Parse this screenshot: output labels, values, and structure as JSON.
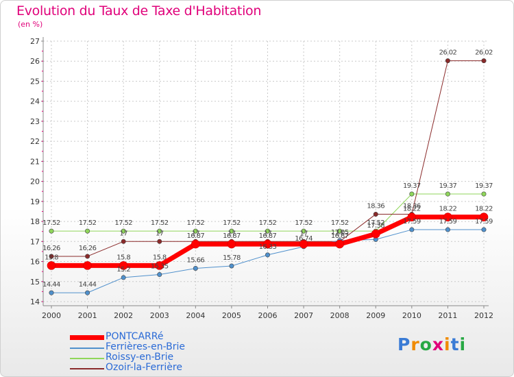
{
  "title": "Evolution du Taux de Taxe d'Habitation",
  "unit_label": "(en %)",
  "logo": {
    "text": "Proxiti",
    "colors": [
      "#3a7bd5",
      "#f08a00",
      "#27a844",
      "#e0007a",
      "#f08a00",
      "#3a7bd5",
      "#27a844"
    ]
  },
  "chart_data": {
    "type": "line",
    "title": "Evolution du Taux de Taxe d'Habitation",
    "ylabel": "(en %)",
    "x": [
      "2000",
      "2001",
      "2002",
      "2003",
      "2004",
      "2005",
      "2006",
      "2007",
      "2008",
      "2009",
      "2010",
      "2011",
      "2012"
    ],
    "ylim": [
      14,
      27
    ],
    "yticks": [
      "14",
      "15",
      "16",
      "17",
      "18",
      "19",
      "20",
      "21",
      "22",
      "23",
      "24",
      "25",
      "26",
      "27"
    ],
    "grid": true,
    "legend_position": "bottom-left",
    "series": [
      {
        "name": "PONTCARRé",
        "color": "#ff0000",
        "width": 7,
        "values": [
          15.8,
          15.8,
          15.8,
          15.8,
          16.87,
          16.87,
          16.87,
          16.87,
          16.87,
          17.38,
          18.22,
          18.22,
          18.22
        ],
        "labels": [
          "15.8",
          "",
          "15.8",
          "15.8",
          "16.87",
          "16.87",
          "16.87",
          "",
          "16.87",
          "17.38",
          "18.22",
          "18.22",
          "18.22"
        ]
      },
      {
        "name": "Ferrières-en-Brie",
        "color": "#4f90cc",
        "width": 1,
        "values": [
          14.44,
          14.44,
          15.2,
          15.35,
          15.66,
          15.78,
          16.33,
          16.74,
          17.05,
          17.1,
          17.59,
          17.59,
          17.59
        ],
        "labels": [
          "14.44",
          "14.44",
          "15.2",
          "15.35",
          "15.66",
          "15.78",
          "16.33",
          "16.74",
          "17.05",
          "",
          "17.59",
          "17.59",
          "17.59"
        ]
      },
      {
        "name": "Roissy-en-Brie",
        "color": "#8fd65a",
        "width": 1,
        "values": [
          17.52,
          17.52,
          17.52,
          17.52,
          17.52,
          17.52,
          17.52,
          17.52,
          17.52,
          17.52,
          19.37,
          19.37,
          19.37
        ],
        "labels": [
          "17.52",
          "17.52",
          "17.52",
          "17.52",
          "17.52",
          "17.52",
          "17.52",
          "17.52",
          "17.52",
          "17.52",
          "19.37",
          "19.37",
          "19.37"
        ]
      },
      {
        "name": "Ozoir-la-Ferrière",
        "color": "#8a2a2a",
        "width": 1,
        "values": [
          16.26,
          16.26,
          17,
          17,
          17,
          17,
          17,
          17,
          17,
          18.36,
          18.36,
          26.02,
          26.02
        ],
        "labels": [
          "16.26",
          "16.26",
          "17",
          "17",
          "17",
          "17",
          "17",
          "17",
          "17",
          "18.36",
          "18.36",
          "26.02",
          "26.02"
        ]
      }
    ]
  }
}
